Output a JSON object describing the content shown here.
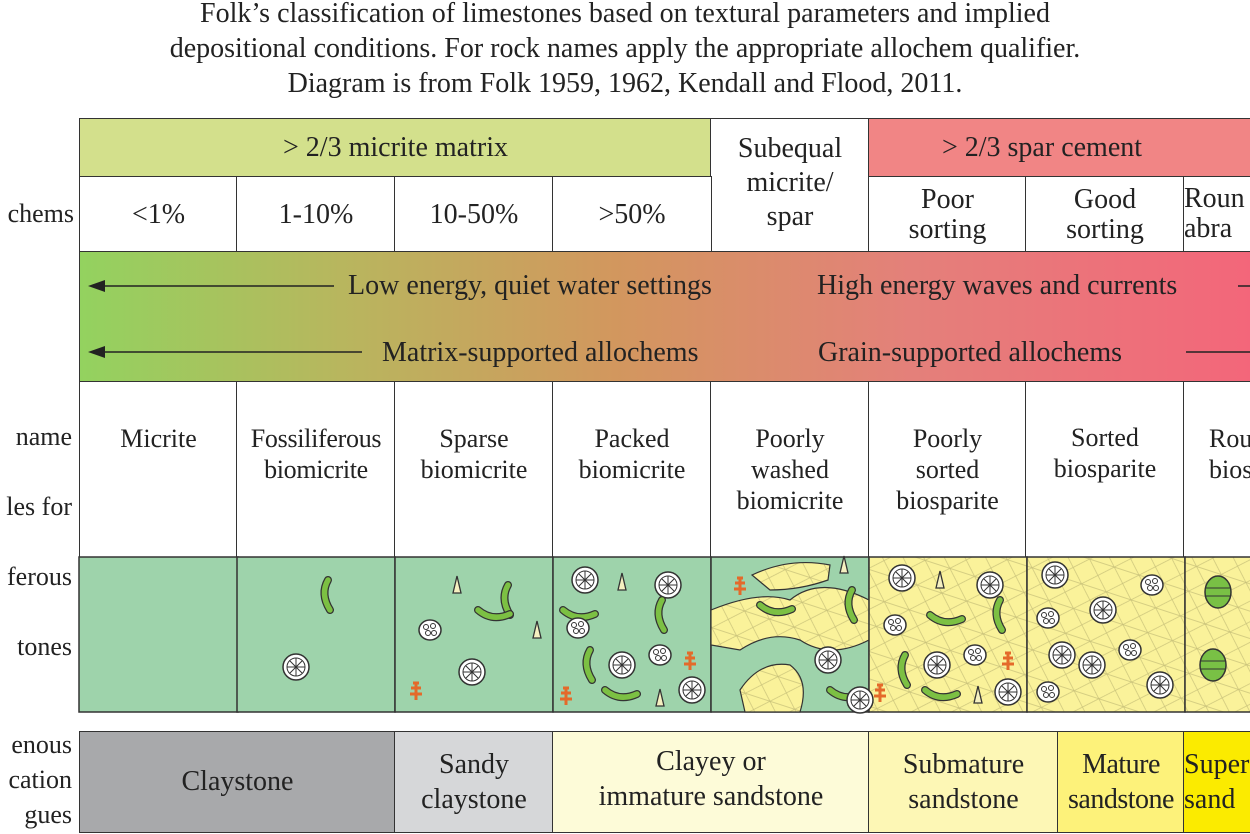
{
  "caption": [
    "Folk’s classification of limestones based on textural parameters and implied",
    "depositional conditions. For rock names apply the appropriate allochem qualifier.",
    "Diagram is from Folk 1959, 1962, Kendall and Flood, 2011."
  ],
  "header": {
    "micrite_matrix": "> 2/3 micrite matrix",
    "subequal": "Subequal\nmicrite/\nspar",
    "spar_cement": "> 2/3 spar cement"
  },
  "row_labels": {
    "allochems": "chems",
    "rock_name": [
      "name",
      "les for",
      "ferous",
      "tones"
    ],
    "terrigenous": [
      "enous",
      "cation",
      "gues"
    ]
  },
  "allochem_percent": [
    "<1%",
    "1-10%",
    "10-50%",
    ">50%"
  ],
  "spar_sorting": [
    "Poor\nsorting",
    "Good\nsorting",
    "Roun\nabra"
  ],
  "energy": {
    "low": "Low energy, quiet water settings",
    "high": "High energy waves and currents",
    "matrix_supported": "Matrix-supported allochems",
    "grain_supported": "Grain-supported allochems"
  },
  "rock_names": [
    "Micrite",
    "Fossiliferous\nbiomicrite",
    "Sparse\nbiomicrite",
    "Packed\nbiomicrite",
    "Poorly\nwashed\nbiomicrite",
    "Poorly\nsorted\nbiosparite",
    "Sorted\nbiosparite",
    "Rou\nbios"
  ],
  "terrigenous_analogues": [
    "Claystone",
    "Sandy\nclaystone",
    "Clayey or\nimmature sandstone",
    "Submature\nsandstone",
    "Mature\nsandstone",
    "Super\nsand"
  ],
  "colors": {
    "micrite_header": "#d3e08c",
    "spar_header": "#f18585",
    "matrix_green": "#9ed3ab",
    "spar_yellow": "#faf29a",
    "gradient_left": "#93d25f",
    "gradient_mid": "#d2975e",
    "gradient_right": "#f4657a",
    "claystone": "#a8a9ab",
    "sandy_claystone": "#d6d7d9",
    "immature": "#fdfbd8",
    "submature": "#fdf7b5",
    "mature": "#fdf27a",
    "super": "#fbeb00"
  }
}
